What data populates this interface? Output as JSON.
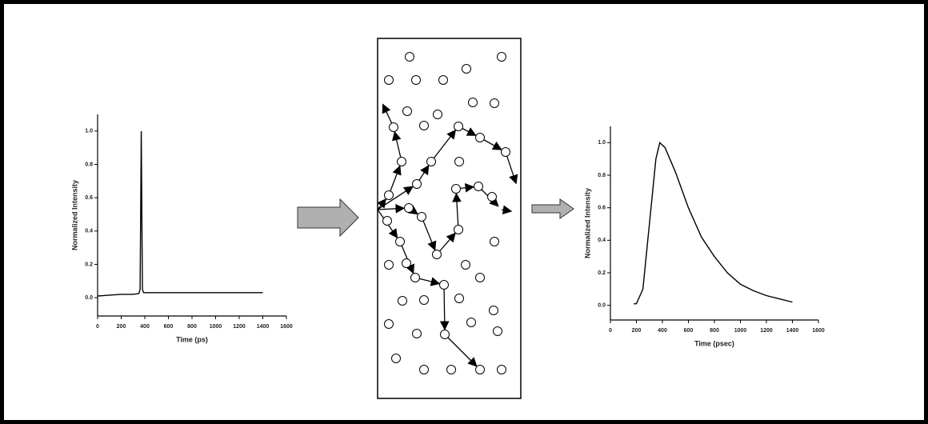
{
  "input_chart": {
    "type": "line",
    "ylabel": "Normalized Intensity",
    "xlabel": "Time (ps)",
    "color": "#000000",
    "x": [
      0,
      100,
      200,
      300,
      350,
      360,
      365,
      370,
      375,
      380,
      390,
      500,
      700,
      900,
      1100,
      1300,
      1400
    ],
    "values": [
      0.01,
      0.015,
      0.02,
      0.02,
      0.025,
      0.05,
      0.5,
      1.0,
      0.5,
      0.05,
      0.03,
      0.03,
      0.03,
      0.03,
      0.03,
      0.03,
      0.03
    ],
    "xlim": [
      0,
      1600
    ],
    "ylim": [
      -0.11,
      1.1
    ],
    "xticks": [
      0,
      200,
      400,
      600,
      800,
      1000,
      1200,
      1400,
      1600
    ],
    "yticks": [
      {
        "value": 0,
        "label": "0.0"
      },
      {
        "value": 0.2,
        "label": "0.2"
      },
      {
        "value": 0.4,
        "label": "0.4"
      },
      {
        "value": 0.6,
        "label": "0.6"
      },
      {
        "value": 0.8,
        "label": "0.8"
      },
      {
        "value": 1,
        "label": "1.0"
      }
    ]
  },
  "output_chart": {
    "type": "line",
    "ylabel": "Normalized Intensity",
    "xlabel": "Time (psec)",
    "color": "#000000",
    "x": [
      180,
      200,
      250,
      300,
      350,
      380,
      420,
      500,
      600,
      700,
      800,
      900,
      1000,
      1100,
      1200,
      1300,
      1400
    ],
    "values": [
      0.01,
      0.01,
      0.1,
      0.5,
      0.9,
      1.0,
      0.97,
      0.82,
      0.6,
      0.42,
      0.3,
      0.2,
      0.13,
      0.09,
      0.06,
      0.04,
      0.02
    ],
    "xlim": [
      0,
      1600
    ],
    "ylim": [
      -0.09,
      1.1
    ],
    "xticks": [
      0,
      200,
      400,
      600,
      800,
      1000,
      1200,
      1400,
      1600
    ],
    "yticks": [
      {
        "value": 0,
        "label": "0.0"
      },
      {
        "value": 0.2,
        "label": "0.2"
      },
      {
        "value": 0.4,
        "label": "0.4"
      },
      {
        "value": 0.6,
        "label": "0.6"
      },
      {
        "value": 0.8,
        "label": "0.8"
      },
      {
        "value": 1,
        "label": "1.0"
      }
    ]
  }
}
